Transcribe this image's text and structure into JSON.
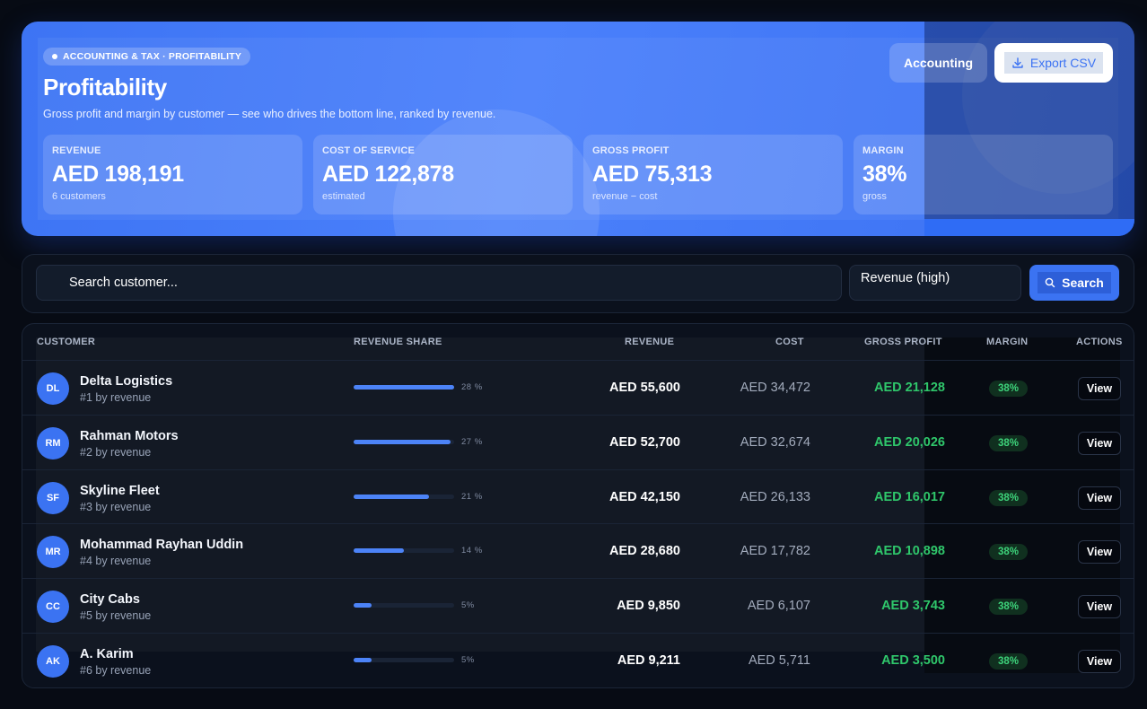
{
  "hero": {
    "breadcrumb": "ACCOUNTING & TAX · PROFITABILITY",
    "title": "Profitability",
    "subtitle": "Gross profit and margin by customer — see who drives the bottom line, ranked by revenue.",
    "accounting_button": "Accounting",
    "export_button": "Export CSV",
    "kpis": [
      {
        "label": "REVENUE",
        "value": "AED 198,191",
        "note": "6 customers"
      },
      {
        "label": "COST OF SERVICE",
        "value": "AED 122,878",
        "note": "estimated"
      },
      {
        "label": "GROSS PROFIT",
        "value": "AED 75,313",
        "note": "revenue − cost"
      },
      {
        "label": "MARGIN",
        "value": "38%",
        "note": "gross"
      }
    ]
  },
  "filters": {
    "search_placeholder": "Search customer...",
    "sort_value": "Revenue (high)",
    "search_button": "Search"
  },
  "table": {
    "columns": [
      "CUSTOMER",
      "REVENUE SHARE",
      "REVENUE",
      "COST",
      "GROSS PROFIT",
      "MARGIN",
      "ACTIONS"
    ],
    "view_label": "View",
    "rows": [
      {
        "initials": "DL",
        "name": "Delta Logistics",
        "rank": "#1 by revenue",
        "share": 28,
        "share_label": "28 %",
        "revenue": "AED 55,600",
        "cost": "AED 34,472",
        "gross_profit": "AED 21,128",
        "margin": "38%"
      },
      {
        "initials": "RM",
        "name": "Rahman Motors",
        "rank": "#2 by revenue",
        "share": 27,
        "share_label": "27 %",
        "revenue": "AED 52,700",
        "cost": "AED 32,674",
        "gross_profit": "AED 20,026",
        "margin": "38%"
      },
      {
        "initials": "SF",
        "name": "Skyline Fleet",
        "rank": "#3 by revenue",
        "share": 21,
        "share_label": "21 %",
        "revenue": "AED 42,150",
        "cost": "AED 26,133",
        "gross_profit": "AED 16,017",
        "margin": "38%"
      },
      {
        "initials": "MR",
        "name": "Mohammad Rayhan Uddin",
        "rank": "#4 by revenue",
        "share": 14,
        "share_label": "14 %",
        "revenue": "AED 28,680",
        "cost": "AED 17,782",
        "gross_profit": "AED 10,898",
        "margin": "38%"
      },
      {
        "initials": "CC",
        "name": "City Cabs",
        "rank": "#5 by revenue",
        "share": 5,
        "share_label": "5%",
        "revenue": "AED 9,850",
        "cost": "AED 6,107",
        "gross_profit": "AED 3,743",
        "margin": "38%"
      },
      {
        "initials": "AK",
        "name": "A. Karim",
        "rank": "#6 by revenue",
        "share": 5,
        "share_label": "5%",
        "revenue": "AED 9,211",
        "cost": "AED 5,711",
        "gross_profit": "AED 3,500",
        "margin": "38%"
      }
    ]
  },
  "colors": {
    "accent": "#3b73f2",
    "profit": "#2fc76b",
    "background": "#070b14"
  }
}
